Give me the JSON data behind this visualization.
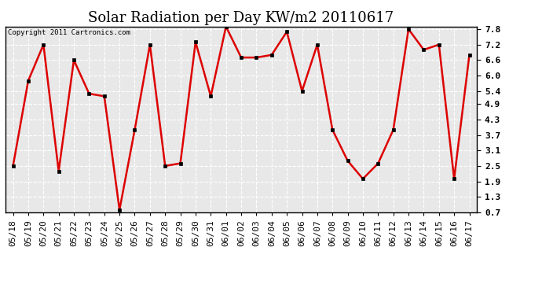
{
  "title": "Solar Radiation per Day KW/m2 20110617",
  "copyright_text": "Copyright 2011 Cartronics.com",
  "labels": [
    "05/18",
    "05/19",
    "05/20",
    "05/21",
    "05/22",
    "05/23",
    "05/24",
    "05/25",
    "05/26",
    "05/27",
    "05/28",
    "05/29",
    "05/30",
    "05/31",
    "06/01",
    "06/02",
    "06/03",
    "06/04",
    "06/05",
    "06/06",
    "06/07",
    "06/08",
    "06/09",
    "06/10",
    "06/11",
    "06/12",
    "06/13",
    "06/14",
    "06/15",
    "06/16",
    "06/17"
  ],
  "values": [
    2.5,
    5.8,
    7.2,
    2.3,
    6.6,
    5.3,
    5.2,
    0.8,
    3.9,
    7.2,
    2.5,
    2.6,
    7.3,
    5.2,
    7.9,
    6.7,
    6.7,
    6.8,
    7.7,
    5.4,
    7.2,
    3.9,
    2.7,
    2.0,
    2.6,
    3.9,
    7.8,
    7.0,
    7.2,
    2.0,
    6.8
  ],
  "line_color": "#dd0000",
  "marker_color": "#000000",
  "bg_color": "#ffffff",
  "plot_bg_color": "#e8e8e8",
  "grid_color": "#ffffff",
  "border_color": "#000000",
  "ylim_min": 0.7,
  "ylim_max": 7.9,
  "yticks": [
    0.7,
    1.3,
    1.9,
    2.5,
    3.1,
    3.7,
    4.3,
    4.9,
    5.4,
    6.0,
    6.6,
    7.2,
    7.8
  ],
  "title_fontsize": 13,
  "tick_fontsize": 8,
  "copyright_fontsize": 6.5
}
